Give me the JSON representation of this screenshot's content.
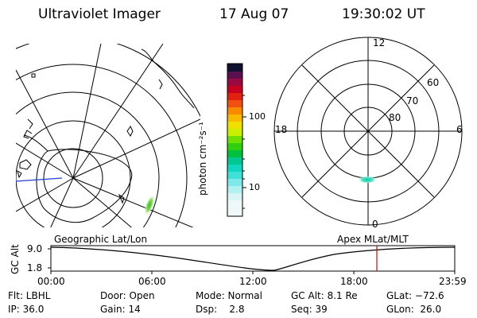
{
  "header": {
    "instrument": "Ultraviolet Imager",
    "date": "17 Aug 07",
    "time": "19:30:02 UT"
  },
  "colorbar": {
    "unit_label": "photon cm⁻²s⁻¹",
    "ticks": [
      "100",
      "10"
    ]
  },
  "polar_plot": {
    "mlt_labels": {
      "top": "12",
      "left": "18",
      "right": "6",
      "bottom": "0"
    },
    "lat_labels": [
      "60",
      "70",
      "80"
    ]
  },
  "timeline": {
    "left_caption": "Geographic Lat/Lon",
    "right_caption": "Apex MLat/MLT",
    "y_axis_label": "GC Alt",
    "y_ticks": [
      "9.0",
      "1.8"
    ],
    "x_ticks": [
      "00:00",
      "06:00",
      "12:00",
      "18:00",
      "23:59"
    ],
    "marker_color": "#e00000"
  },
  "footer": {
    "row1": {
      "flt": "Flt: LBHL",
      "door": "Door: Open",
      "mode": "Mode: Normal",
      "gcalt": "GC Alt: 8.1 Re",
      "glat": "GLat: −72.6"
    },
    "row2": {
      "ip": "IP: 36.0",
      "gain": "Gain: 14",
      "dsp": "Dsp:    2.8",
      "seq": "Seq: 39",
      "glon": "GLon:  26.0"
    }
  }
}
